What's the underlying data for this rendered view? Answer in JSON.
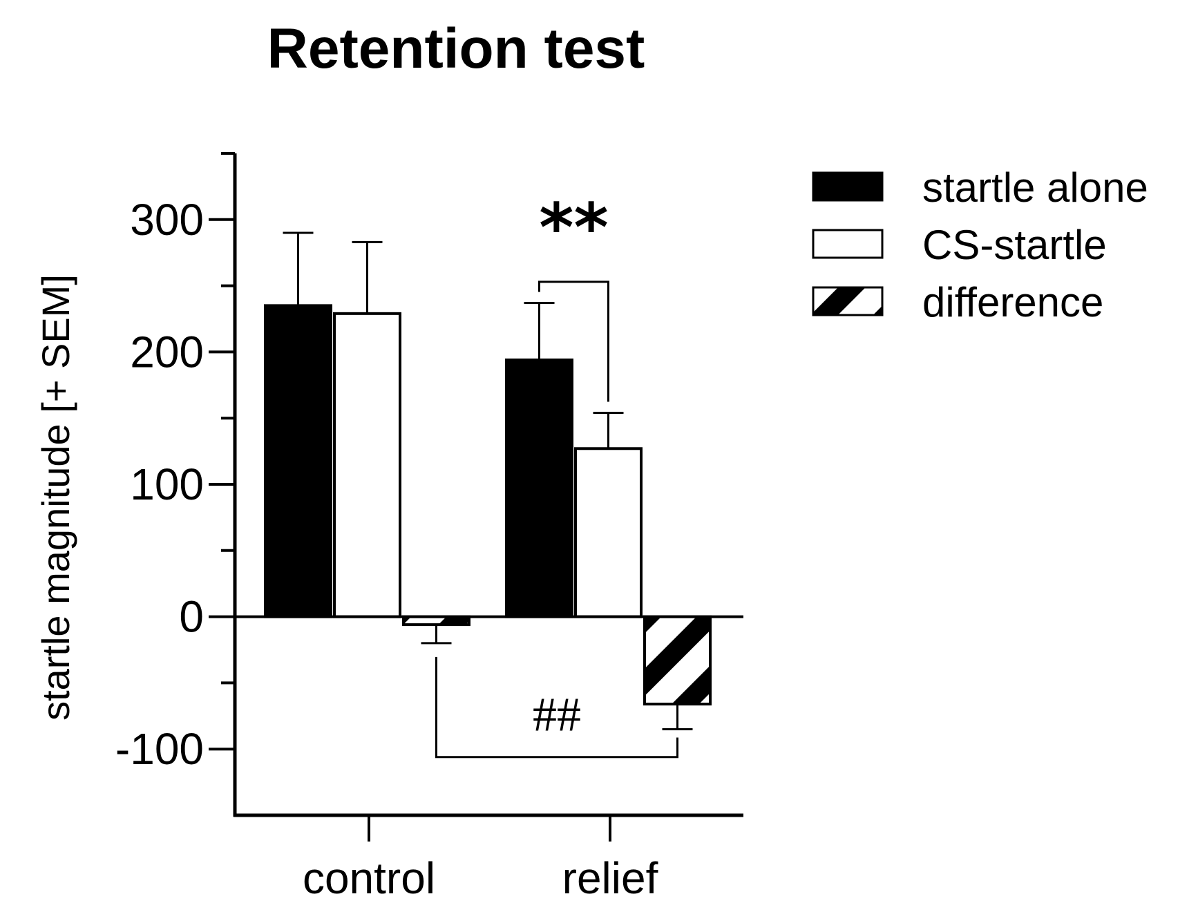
{
  "chart_data": {
    "type": "bar",
    "title": "Retention test",
    "xlabel": "",
    "ylabel": "startle magnitude [+ SEM]",
    "categories": [
      "control",
      "relief"
    ],
    "ylim": [
      -150,
      350
    ],
    "yticks": [
      -100,
      0,
      100,
      200,
      300
    ],
    "ytick_labels": [
      "-100",
      "0",
      "100",
      "200",
      "300"
    ],
    "series": [
      {
        "name": "startle alone",
        "fill": "solid",
        "color": "#000000",
        "values": [
          235,
          194
        ],
        "sem": [
          55,
          43
        ]
      },
      {
        "name": "CS-startle",
        "fill": "none",
        "color": "#ffffff",
        "values": [
          229,
          127
        ],
        "sem": [
          54,
          27
        ]
      },
      {
        "name": "difference",
        "fill": "hatched",
        "color": "#000000",
        "values": [
          -6,
          -66
        ],
        "sem": [
          14,
          19
        ]
      }
    ],
    "legend_position": "top-right",
    "annotations": [
      {
        "text": "**",
        "type": "within-group",
        "category": "relief",
        "between": [
          "startle alone",
          "CS-startle"
        ]
      },
      {
        "text": "##",
        "type": "between-group",
        "series": "difference",
        "between": [
          "control",
          "relief"
        ]
      }
    ]
  }
}
